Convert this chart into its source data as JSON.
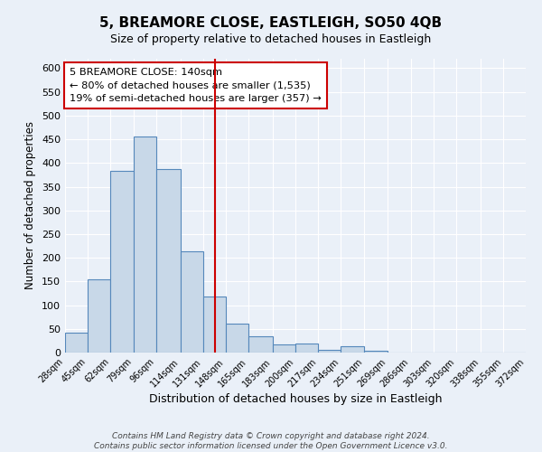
{
  "title": "5, BREAMORE CLOSE, EASTLEIGH, SO50 4QB",
  "subtitle": "Size of property relative to detached houses in Eastleigh",
  "xlabel": "Distribution of detached houses by size in Eastleigh",
  "ylabel": "Number of detached properties",
  "footer_lines": [
    "Contains HM Land Registry data © Crown copyright and database right 2024.",
    "Contains public sector information licensed under the Open Government Licence v3.0."
  ],
  "bin_edges": [
    28,
    45,
    62,
    79,
    96,
    114,
    131,
    148,
    165,
    183,
    200,
    217,
    234,
    251,
    269,
    286,
    303,
    320,
    338,
    355,
    372
  ],
  "bar_heights": [
    42,
    155,
    383,
    455,
    388,
    213,
    119,
    62,
    35,
    17,
    19,
    5,
    14,
    4,
    0,
    0,
    0,
    0,
    0,
    0
  ],
  "bar_color": "#c8d8e8",
  "bar_edge_color": "#5588bb",
  "property_size": 140,
  "vline_color": "#cc0000",
  "annotation_title": "5 BREAMORE CLOSE: 140sqm",
  "annotation_line1": "← 80% of detached houses are smaller (1,535)",
  "annotation_line2": "19% of semi-detached houses are larger (357) →",
  "annotation_box_color": "#ffffff",
  "annotation_box_edge_color": "#cc0000",
  "ylim": [
    0,
    620
  ],
  "background_color": "#eaf0f8",
  "tick_labels": [
    "28sqm",
    "45sqm",
    "62sqm",
    "79sqm",
    "96sqm",
    "114sqm",
    "131sqm",
    "148sqm",
    "165sqm",
    "183sqm",
    "200sqm",
    "217sqm",
    "234sqm",
    "251sqm",
    "269sqm",
    "286sqm",
    "303sqm",
    "320sqm",
    "338sqm",
    "355sqm",
    "372sqm"
  ],
  "yticks": [
    0,
    50,
    100,
    150,
    200,
    250,
    300,
    350,
    400,
    450,
    500,
    550,
    600
  ]
}
